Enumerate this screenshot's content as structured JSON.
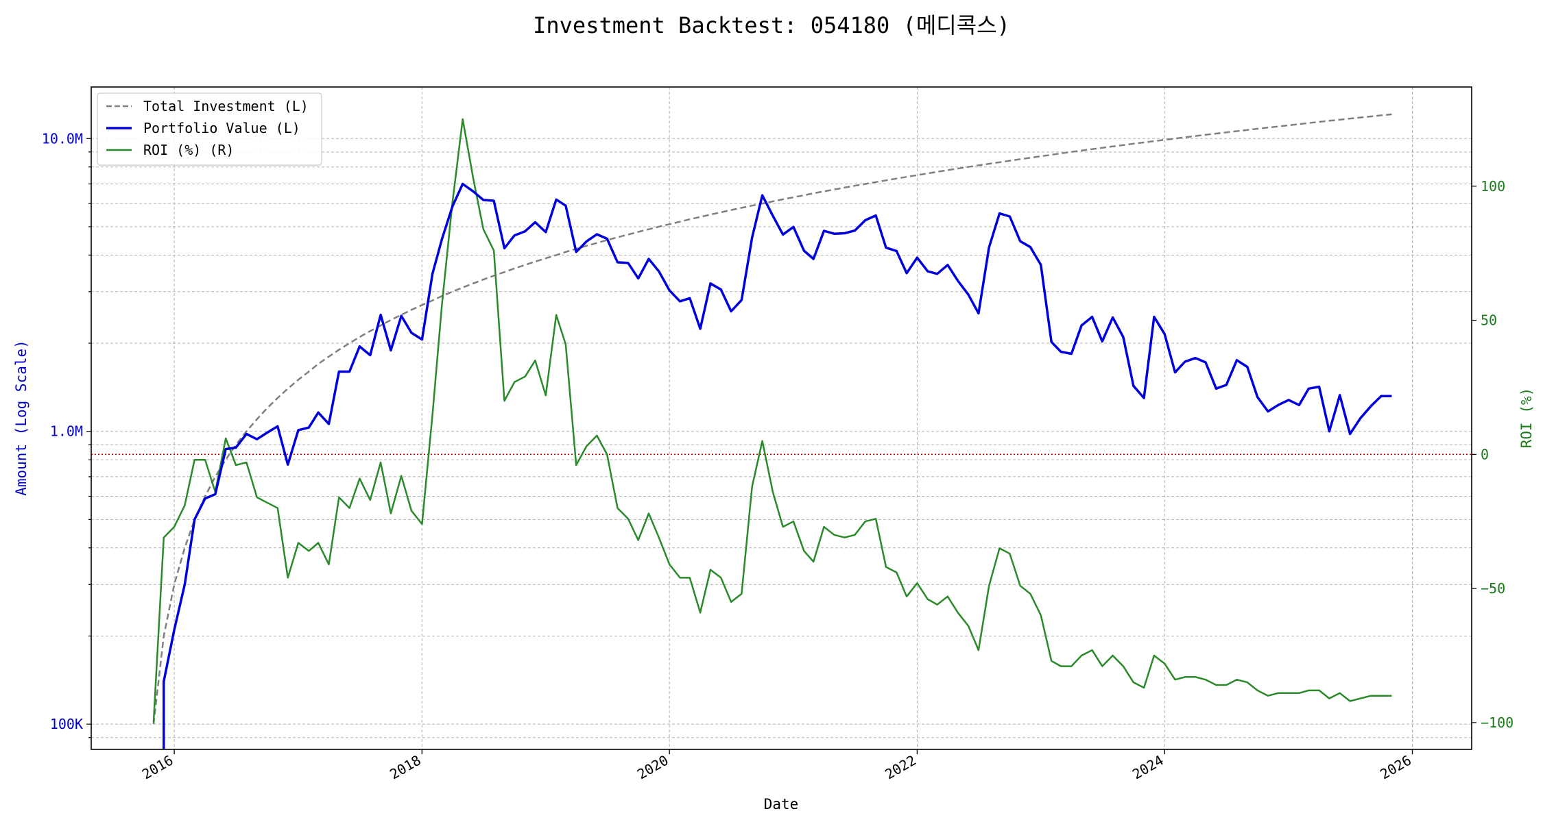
{
  "chart_data": {
    "type": "line",
    "title": "Investment Backtest: 054180 (메디콕스)",
    "xlabel": "Date",
    "ylabel_left": "Amount (Log Scale)",
    "ylabel_right": "ROI (%)",
    "y_left_scale": "log",
    "y_left_ticks": [
      100000,
      1000000,
      10000000
    ],
    "y_left_tick_labels": [
      "100K",
      "1.0M",
      "10.0M"
    ],
    "y_left_lim": [
      82000,
      15000000
    ],
    "y_right_lim": [
      -110,
      137
    ],
    "y_right_ticks": [
      -100,
      -50,
      0,
      50,
      100
    ],
    "y_right_tick_labels": [
      "−100",
      "−50",
      "0",
      "50",
      "100"
    ],
    "x_lim": [
      "2015-05-01",
      "2026-06-25"
    ],
    "x_tick_labels": [
      "2016",
      "2018",
      "2020",
      "2022",
      "2024",
      "2026"
    ],
    "grid": true,
    "legend_position": "top-left",
    "colors": {
      "total_investment": "#7f7f7f",
      "portfolio_value": "#0000dd",
      "roi": "#2a8a2a",
      "zero_line": "#cc0000",
      "left_axis_text": "#0000cc",
      "right_axis_text": "#1a7a1a"
    },
    "x": [
      "2015-11",
      "2015-12",
      "2016-01",
      "2016-02",
      "2016-03",
      "2016-04",
      "2016-05",
      "2016-06",
      "2016-07",
      "2016-08",
      "2016-09",
      "2016-10",
      "2016-11",
      "2016-12",
      "2017-01",
      "2017-02",
      "2017-03",
      "2017-04",
      "2017-05",
      "2017-06",
      "2017-07",
      "2017-08",
      "2017-09",
      "2017-10",
      "2017-11",
      "2017-12",
      "2018-01",
      "2018-02",
      "2018-03",
      "2018-04",
      "2018-05",
      "2018-06",
      "2018-07",
      "2018-08",
      "2018-09",
      "2018-10",
      "2018-11",
      "2018-12",
      "2019-01",
      "2019-02",
      "2019-03",
      "2019-04",
      "2019-05",
      "2019-06",
      "2019-07",
      "2019-08",
      "2019-09",
      "2019-10",
      "2019-11",
      "2019-12",
      "2020-01",
      "2020-02",
      "2020-03",
      "2020-04",
      "2020-05",
      "2020-06",
      "2020-07",
      "2020-08",
      "2020-09",
      "2020-10",
      "2020-11",
      "2020-12",
      "2021-01",
      "2021-02",
      "2021-03",
      "2021-04",
      "2021-05",
      "2021-06",
      "2021-07",
      "2021-08",
      "2021-09",
      "2021-10",
      "2021-11",
      "2021-12",
      "2022-01",
      "2022-02",
      "2022-03",
      "2022-04",
      "2022-05",
      "2022-06",
      "2022-07",
      "2022-08",
      "2022-09",
      "2022-10",
      "2022-11",
      "2022-12",
      "2023-01",
      "2023-02",
      "2023-03",
      "2023-04",
      "2023-05",
      "2023-06",
      "2023-07",
      "2023-08",
      "2023-09",
      "2023-10",
      "2023-11",
      "2023-12",
      "2024-01",
      "2024-02",
      "2024-03",
      "2024-04",
      "2024-05",
      "2024-06",
      "2024-07",
      "2024-08",
      "2024-09",
      "2024-10",
      "2024-11",
      "2024-12",
      "2025-01",
      "2025-02",
      "2025-03",
      "2025-04",
      "2025-05",
      "2025-06",
      "2025-07",
      "2025-08",
      "2025-09",
      "2025-10",
      "2025-11"
    ],
    "series": [
      {
        "name": "Total Investment (L)",
        "style": "dashed",
        "values": [
          100000,
          200000,
          300000,
          400000,
          500000,
          600000,
          700000,
          800000,
          900000,
          1000000,
          1100000,
          1200000,
          1300000,
          1400000,
          1500000,
          1600000,
          1700000,
          1800000,
          1900000,
          2000000,
          2100000,
          2200000,
          2300000,
          2400000,
          2500000,
          2600000,
          2700000,
          2800000,
          2900000,
          3000000,
          3100000,
          3200000,
          3300000,
          3400000,
          3500000,
          3600000,
          3700000,
          3800000,
          3900000,
          4000000,
          4100000,
          4200000,
          4300000,
          4400000,
          4500000,
          4600000,
          4700000,
          4800000,
          4900000,
          5000000,
          5100000,
          5200000,
          5300000,
          5400000,
          5500000,
          5600000,
          5700000,
          5800000,
          5900000,
          6000000,
          6100000,
          6200000,
          6300000,
          6400000,
          6500000,
          6600000,
          6700000,
          6800000,
          6900000,
          7000000,
          7100000,
          7200000,
          7300000,
          7400000,
          7500000,
          7600000,
          7700000,
          7800000,
          7900000,
          8000000,
          8100000,
          8200000,
          8300000,
          8400000,
          8500000,
          8600000,
          8700000,
          8800000,
          8900000,
          9000000,
          9100000,
          9200000,
          9300000,
          9400000,
          9500000,
          9600000,
          9700000,
          9800000,
          9900000,
          10000000,
          10100000,
          10200000,
          10300000,
          10400000,
          10500000,
          10600000,
          10700000,
          10800000,
          10900000,
          11000000,
          11100000,
          11200000,
          11300000,
          11400000,
          11500000,
          11600000,
          11700000,
          11800000,
          11900000,
          12000000,
          12100000
        ]
      },
      {
        "name": "Portfolio Value (L)",
        "style": "solid",
        "values": [
          null,
          140000,
          210000,
          300000,
          500000,
          590000,
          610000,
          870000,
          880000,
          980000,
          940000,
          990000,
          1040000,
          770000,
          1010000,
          1030000,
          1160000,
          1060000,
          1600000,
          1600000,
          1950000,
          1820000,
          2500000,
          1890000,
          2480000,
          2170000,
          2060000,
          3460000,
          4540000,
          5870000,
          7000000,
          6600000,
          6170000,
          6130000,
          4220000,
          4670000,
          4820000,
          5180000,
          4790000,
          6190000,
          5900000,
          4100000,
          4450000,
          4710000,
          4550000,
          3780000,
          3760000,
          3330000,
          3880000,
          3520000,
          3030000,
          2780000,
          2850000,
          2240000,
          3200000,
          3050000,
          2570000,
          2810000,
          4590000,
          6400000,
          5450000,
          4700000,
          4990000,
          4140000,
          3880000,
          4840000,
          4730000,
          4750000,
          4850000,
          5260000,
          5460000,
          4240000,
          4130000,
          3470000,
          3920000,
          3520000,
          3450000,
          3700000,
          3270000,
          2930000,
          2530000,
          4250000,
          5550000,
          5420000,
          4460000,
          4260000,
          3700000,
          2020000,
          1870000,
          1840000,
          2300000,
          2460000,
          2030000,
          2450000,
          2100000,
          1430000,
          1300000,
          2460000,
          2150000,
          1590000,
          1730000,
          1780000,
          1720000,
          1400000,
          1440000,
          1750000,
          1660000,
          1310000,
          1170000,
          1230000,
          1280000,
          1230000,
          1400000,
          1420000,
          1000000,
          1330000,
          980000,
          1110000,
          1220000,
          1320000,
          1320000
        ]
      },
      {
        "name": "ROI (%) (R)",
        "style": "solid",
        "values": [
          -100,
          -31,
          -27,
          -19,
          -2,
          -2,
          -14,
          6,
          -4,
          -3,
          -16,
          -18,
          -20,
          -46,
          -33,
          -36,
          -33,
          -41,
          -16,
          -20,
          -9,
          -17,
          -3,
          -22,
          -8,
          -21,
          -26,
          15,
          56,
          94,
          125,
          103,
          84,
          76,
          20,
          27,
          29,
          35,
          22,
          52,
          41,
          -4,
          3,
          7,
          0,
          -20,
          -24,
          -32,
          -22,
          -31,
          -41,
          -46,
          -46,
          -59,
          -43,
          -46,
          -55,
          -52,
          -12,
          5,
          -14,
          -27,
          -25,
          -36,
          -40,
          -27,
          -30,
          -31,
          -30,
          -25,
          -24,
          -42,
          -44,
          -53,
          -48,
          -54,
          -56,
          -53,
          -59,
          -64,
          -73,
          -49,
          -35,
          -37,
          -49,
          -52,
          -60,
          -77,
          -79,
          -79,
          -75,
          -73,
          -79,
          -75,
          -79,
          -85,
          -87,
          -75,
          -78,
          -84,
          -83,
          -83,
          -84,
          -86,
          -86,
          -84,
          -85,
          -88,
          -90,
          -89,
          -89,
          -89,
          -88,
          -88,
          -91,
          -89,
          -92,
          -91,
          -90,
          -90,
          -90
        ]
      }
    ],
    "reference_line": {
      "axis": "right",
      "value": 0,
      "style": "dotted"
    }
  }
}
